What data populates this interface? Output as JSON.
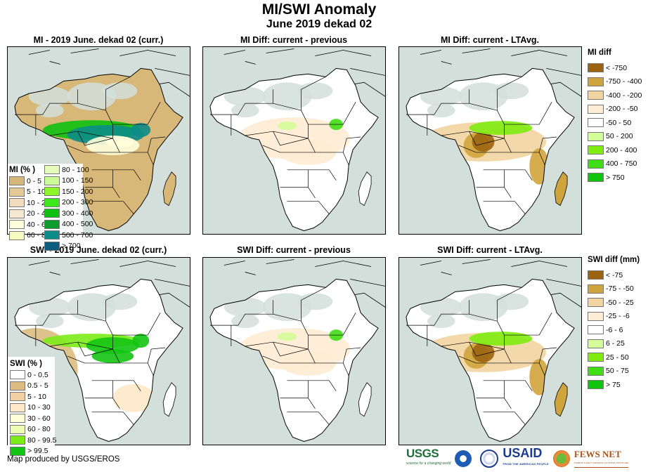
{
  "header": {
    "title": "MI/SWI Anomaly",
    "subtitle": "June 2019 dekad 02"
  },
  "panels": [
    {
      "id": "mi-current",
      "title": "MI - 2019 June. dekad 02 (curr.)",
      "variable": "MI",
      "scheme": "mi_abs"
    },
    {
      "id": "mi-diff-previous",
      "title": "MI Diff: current - previous",
      "variable": "MI",
      "scheme": "diff_light"
    },
    {
      "id": "mi-diff-ltavg",
      "title": "MI Diff: current - LTAvg.",
      "variable": "MI",
      "scheme": "diff_strong"
    },
    {
      "id": "swi-current",
      "title": "SWI - 2019 June. dekad 02 (curr.)",
      "variable": "SWI",
      "scheme": "swi_abs"
    },
    {
      "id": "swi-diff-previous",
      "title": "SWI Diff: current - previous",
      "variable": "SWI",
      "scheme": "diff_light"
    },
    {
      "id": "swi-diff-ltavg",
      "title": "SWI Diff: current - LTAvg.",
      "variable": "SWI",
      "scheme": "diff_strong"
    }
  ],
  "legends": {
    "mi_percent": {
      "title": "MI (% )",
      "col1": [
        {
          "label": "0 - 5",
          "color": "#d8b878"
        },
        {
          "label": "5 - 10",
          "color": "#e4c896"
        },
        {
          "label": "10 - 20",
          "color": "#f0dcbc"
        },
        {
          "label": "20 - 40",
          "color": "#f6e8d0"
        },
        {
          "label": "40 - 60",
          "color": "#fefedc"
        },
        {
          "label": "60 - 80",
          "color": "#f4fcc0"
        }
      ],
      "col2": [
        {
          "label": "80 - 100",
          "color": "#e4fcbc"
        },
        {
          "label": "100 - 150",
          "color": "#ccfc98"
        },
        {
          "label": "150 - 200",
          "color": "#8cf428"
        },
        {
          "label": "200 - 300",
          "color": "#3ce81c"
        },
        {
          "label": "300 - 400",
          "color": "#10c010"
        },
        {
          "label": "400 - 500",
          "color": "#0c9c2c"
        },
        {
          "label": "500 - 700",
          "color": "#0c8c88"
        },
        {
          "label": "> 700",
          "color": "#0c5c80"
        }
      ]
    },
    "swi_percent": {
      "title": "SWI (% )",
      "items": [
        {
          "label": "0 - 0.5",
          "color": "#ffffff"
        },
        {
          "label": "0.5 - 5",
          "color": "#dcbc80"
        },
        {
          "label": "5 - 10",
          "color": "#f2d0a4"
        },
        {
          "label": "10 - 30",
          "color": "#fee8c8"
        },
        {
          "label": "30 - 60",
          "color": "#fefed8"
        },
        {
          "label": "60 - 80",
          "color": "#eefcb4"
        },
        {
          "label": "80 - 99.5",
          "color": "#7cec18"
        },
        {
          "label": "> 99.5",
          "color": "#14c414"
        }
      ]
    },
    "mi_diff": {
      "title": "MI diff",
      "items": [
        {
          "label": "< -750",
          "color": "#9c6410"
        },
        {
          "label": "-750 - -400",
          "color": "#d0a43c"
        },
        {
          "label": "-400 - -200",
          "color": "#f2d4a0"
        },
        {
          "label": "-200 - -50",
          "color": "#feecd4"
        },
        {
          "label": "-50 - 50",
          "color": "#ffffff"
        },
        {
          "label": "50 - 200",
          "color": "#d4fc98"
        },
        {
          "label": "200 - 400",
          "color": "#80ec10"
        },
        {
          "label": "400 - 750",
          "color": "#40dc14"
        },
        {
          "label": "> 750",
          "color": "#10c410"
        }
      ]
    },
    "swi_diff": {
      "title": "SWI diff (mm)",
      "items": [
        {
          "label": "< -75",
          "color": "#9c6410"
        },
        {
          "label": "-75 - -50",
          "color": "#d0a43c"
        },
        {
          "label": "-50 - -25",
          "color": "#f2d4a0"
        },
        {
          "label": "-25 - -6",
          "color": "#feecd4"
        },
        {
          "label": "-6 - 6",
          "color": "#ffffff"
        },
        {
          "label": "6 - 25",
          "color": "#d4fc98"
        },
        {
          "label": "25 - 50",
          "color": "#80ec10"
        },
        {
          "label": "50 - 75",
          "color": "#40dc14"
        },
        {
          "label": "> 75",
          "color": "#10c410"
        }
      ]
    }
  },
  "colors": {
    "ocean": "#d2dfda",
    "border": "#000000",
    "desert_nodata": "#d2dfda"
  },
  "footer": {
    "credit": "Map produced by USGS/EROS",
    "logos": [
      {
        "name": "USGS",
        "tagline": "science for a changing world"
      },
      {
        "name": "NOAA",
        "tagline": ""
      },
      {
        "name": "USAID seal",
        "tagline": ""
      },
      {
        "name": "USAID",
        "tagline": "FROM THE AMERICAN PEOPLE"
      },
      {
        "name": "FEWS NET",
        "tagline": "FAMINE EARLY WARNING SYSTEMS NETWORK"
      }
    ]
  }
}
